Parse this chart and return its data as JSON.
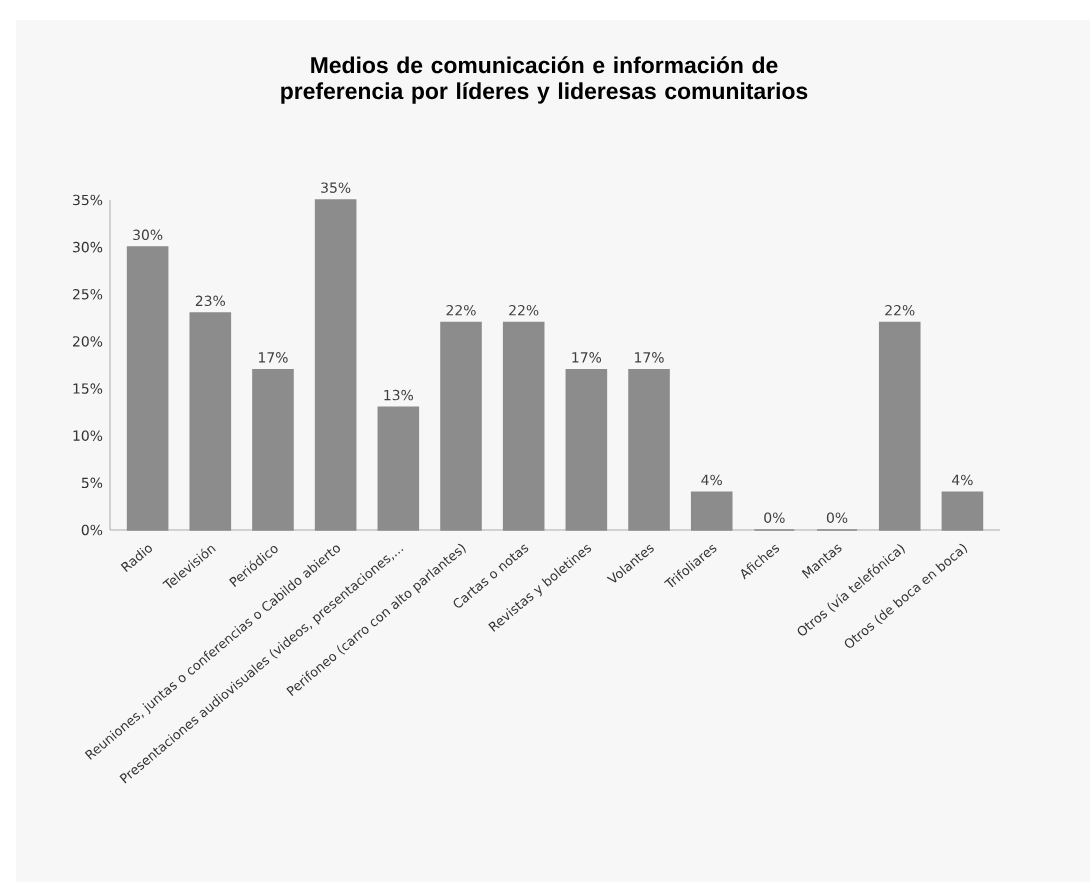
{
  "chart_data": {
    "type": "bar",
    "title": "Medios de comunicación e información de preferencia por líderes y lideresas comunitarios",
    "categories": [
      "Radio",
      "Televisión",
      "Periódico",
      "Reuniones, juntas o conferencias o Cabildo abierto",
      "Presentaciones audiovisuales (videos, presentaciones,...",
      "Perifoneo (carro con alto parlantes)",
      "Cartas o notas",
      "Revistas y boletines",
      "Volantes",
      "Trifoliares",
      "Afiches",
      "Mantas",
      "Otros (vía telefónica)",
      "Otros (de boca en boca)"
    ],
    "values": [
      30,
      23,
      17,
      35,
      13,
      22,
      22,
      17,
      17,
      4,
      0,
      0,
      22,
      4
    ],
    "value_labels": [
      "30%",
      "23%",
      "17%",
      "35%",
      "13%",
      "22%",
      "22%",
      "17%",
      "17%",
      "4%",
      "0%",
      "0%",
      "22%",
      "4%"
    ],
    "color": "#8c8c8c",
    "ylim": [
      0,
      35
    ],
    "yticks": [
      {
        "value": 0,
        "label": "0%"
      },
      {
        "value": 5,
        "label": "5%"
      },
      {
        "value": 10,
        "label": "10%"
      },
      {
        "value": 15,
        "label": "15%"
      },
      {
        "value": 20,
        "label": "20%"
      },
      {
        "value": 25,
        "label": "25%"
      },
      {
        "value": 30,
        "label": "30%"
      },
      {
        "value": 35,
        "label": "35%"
      }
    ]
  }
}
